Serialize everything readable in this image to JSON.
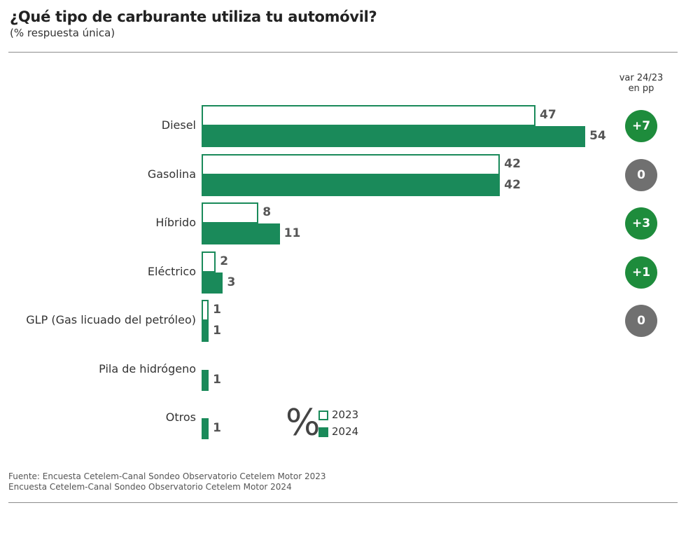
{
  "title": "¿Qué tipo de carburante utiliza tu automóvil?",
  "subtitle": "(% respuesta única)",
  "var_header": [
    "var 24/23",
    "en pp"
  ],
  "colors": {
    "accent": "#1a8a5a",
    "badge_positive": "#1e8c3c",
    "badge_zero": "#707070"
  },
  "legend": {
    "symbol": "%",
    "items": [
      "2023",
      "2024"
    ]
  },
  "chart_data": {
    "type": "bar",
    "orientation": "horizontal",
    "categories": [
      "Diesel",
      "Gasolina",
      "Híbrido",
      "Eléctrico",
      "GLP (Gas licuado del petróleo)",
      "Pila de hidrógeno",
      "Otros"
    ],
    "series": [
      {
        "name": "2023",
        "values": [
          47,
          42,
          8,
          2,
          1,
          null,
          null
        ]
      },
      {
        "name": "2024",
        "values": [
          54,
          42,
          11,
          3,
          1,
          1,
          1
        ]
      }
    ],
    "variation": [
      "+7",
      "0",
      "+3",
      "+1",
      "0",
      null,
      null
    ],
    "xlim": [
      0,
      56
    ],
    "grid": false,
    "legend_position": "bottom-center"
  },
  "source": [
    "Fuente: Encuesta Cetelem-Canal Sondeo Observatorio Cetelem Motor 2023",
    "Encuesta Cetelem-Canal Sondeo Observatorio Cetelem Motor 2024"
  ]
}
